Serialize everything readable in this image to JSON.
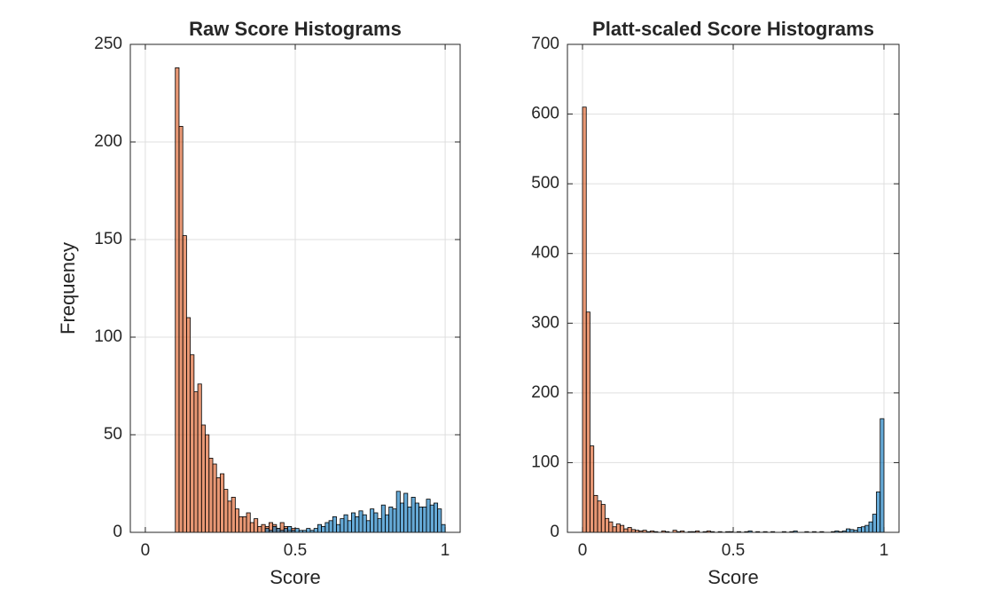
{
  "chart_data": [
    {
      "type": "histogram",
      "title": "Raw Score Histograms",
      "xlabel": "Score",
      "ylabel": "Frequency",
      "xlim": [
        -0.05,
        1.05
      ],
      "ylim": [
        0,
        250
      ],
      "xticks": [
        0,
        0.5,
        1
      ],
      "yticks": [
        0,
        50,
        100,
        150,
        200,
        250
      ],
      "grid": true,
      "face_alpha": 0.6,
      "series": [
        {
          "color": "#D95319",
          "bins": [
            0.1,
            0.1125,
            0.125,
            0.1375,
            0.15,
            0.1625,
            0.175,
            0.1875,
            0.2,
            0.2125,
            0.225,
            0.2375,
            0.25,
            0.2625,
            0.275,
            0.2875,
            0.3,
            0.3125,
            0.325,
            0.3375,
            0.35,
            0.3625,
            0.375,
            0.3875,
            0.4,
            0.4125,
            0.425,
            0.4375,
            0.45,
            0.4625,
            0.475,
            0.4875,
            0.5
          ],
          "values": [
            238,
            208,
            152,
            110,
            91,
            72,
            76,
            55,
            50,
            38,
            35,
            28,
            30,
            22,
            16,
            18,
            12,
            8,
            8,
            10,
            5,
            7,
            3,
            4,
            3,
            5,
            4,
            2,
            5,
            3,
            1,
            2
          ]
        },
        {
          "color": "#0072BD",
          "bins": [
            0.4,
            0.4125,
            0.425,
            0.4375,
            0.45,
            0.4625,
            0.475,
            0.4875,
            0.5,
            0.5125,
            0.525,
            0.5375,
            0.55,
            0.5625,
            0.575,
            0.5875,
            0.6,
            0.6125,
            0.625,
            0.6375,
            0.65,
            0.6625,
            0.675,
            0.6875,
            0.7,
            0.7125,
            0.725,
            0.7375,
            0.75,
            0.7625,
            0.775,
            0.7875,
            0.8,
            0.8125,
            0.825,
            0.8375,
            0.85,
            0.8625,
            0.875,
            0.8875,
            0.9,
            0.9125,
            0.925,
            0.9375,
            0.95,
            0.9625,
            0.975,
            0.9875,
            1.0
          ],
          "values": [
            2,
            1,
            3,
            2,
            1,
            2,
            3,
            1,
            2,
            1,
            1,
            2,
            1,
            2,
            4,
            3,
            5,
            6,
            8,
            4,
            7,
            9,
            6,
            10,
            8,
            11,
            9,
            6,
            12,
            10,
            7,
            14,
            9,
            13,
            12,
            21,
            15,
            20,
            13,
            18,
            15,
            13,
            13,
            17,
            14,
            15,
            12,
            4
          ]
        }
      ]
    },
    {
      "type": "histogram",
      "title": "Platt-scaled Score Histograms",
      "xlabel": "Score",
      "xlim": [
        -0.05,
        1.05
      ],
      "ylim": [
        0,
        700
      ],
      "xticks": [
        0,
        0.5,
        1
      ],
      "yticks": [
        0,
        100,
        200,
        300,
        400,
        500,
        600,
        700
      ],
      "grid": true,
      "face_alpha": 0.6,
      "series": [
        {
          "color": "#D95319",
          "bins": [
            0,
            0.0125,
            0.025,
            0.0375,
            0.05,
            0.0625,
            0.075,
            0.0875,
            0.1,
            0.1125,
            0.125,
            0.1375,
            0.15,
            0.1625,
            0.175,
            0.1875,
            0.2,
            0.2125,
            0.225,
            0.2375,
            0.25,
            0.2625,
            0.275,
            0.2875,
            0.3,
            0.3125,
            0.325,
            0.3375,
            0.35,
            0.3625,
            0.375,
            0.3875,
            0.4,
            0.4125,
            0.425,
            0.4375,
            0.45,
            0.4625,
            0.475,
            0.4875,
            0.5
          ],
          "values": [
            610,
            316,
            124,
            53,
            45,
            40,
            20,
            15,
            8,
            12,
            10,
            5,
            7,
            4,
            3,
            2,
            3,
            1,
            2,
            1,
            0,
            2,
            1,
            0,
            3,
            1,
            2,
            0,
            1,
            1,
            2,
            0,
            1,
            2,
            1,
            0,
            1,
            0,
            1,
            1
          ]
        },
        {
          "color": "#0072BD",
          "bins": [
            0.5,
            0.5125,
            0.525,
            0.5375,
            0.55,
            0.5625,
            0.575,
            0.5875,
            0.6,
            0.6125,
            0.625,
            0.6375,
            0.65,
            0.6625,
            0.675,
            0.6875,
            0.7,
            0.7125,
            0.725,
            0.7375,
            0.75,
            0.7625,
            0.775,
            0.7875,
            0.8,
            0.8125,
            0.825,
            0.8375,
            0.85,
            0.8625,
            0.875,
            0.8875,
            0.9,
            0.9125,
            0.925,
            0.9375,
            0.95,
            0.9625,
            0.975,
            0.9875,
            1.0
          ],
          "values": [
            0,
            1,
            0,
            1,
            2,
            0,
            1,
            0,
            1,
            0,
            1,
            0,
            0,
            1,
            0,
            1,
            2,
            0,
            0,
            1,
            0,
            1,
            0,
            1,
            0,
            0,
            1,
            2,
            1,
            2,
            5,
            4,
            3,
            7,
            8,
            10,
            15,
            26,
            58,
            163
          ]
        }
      ]
    }
  ]
}
